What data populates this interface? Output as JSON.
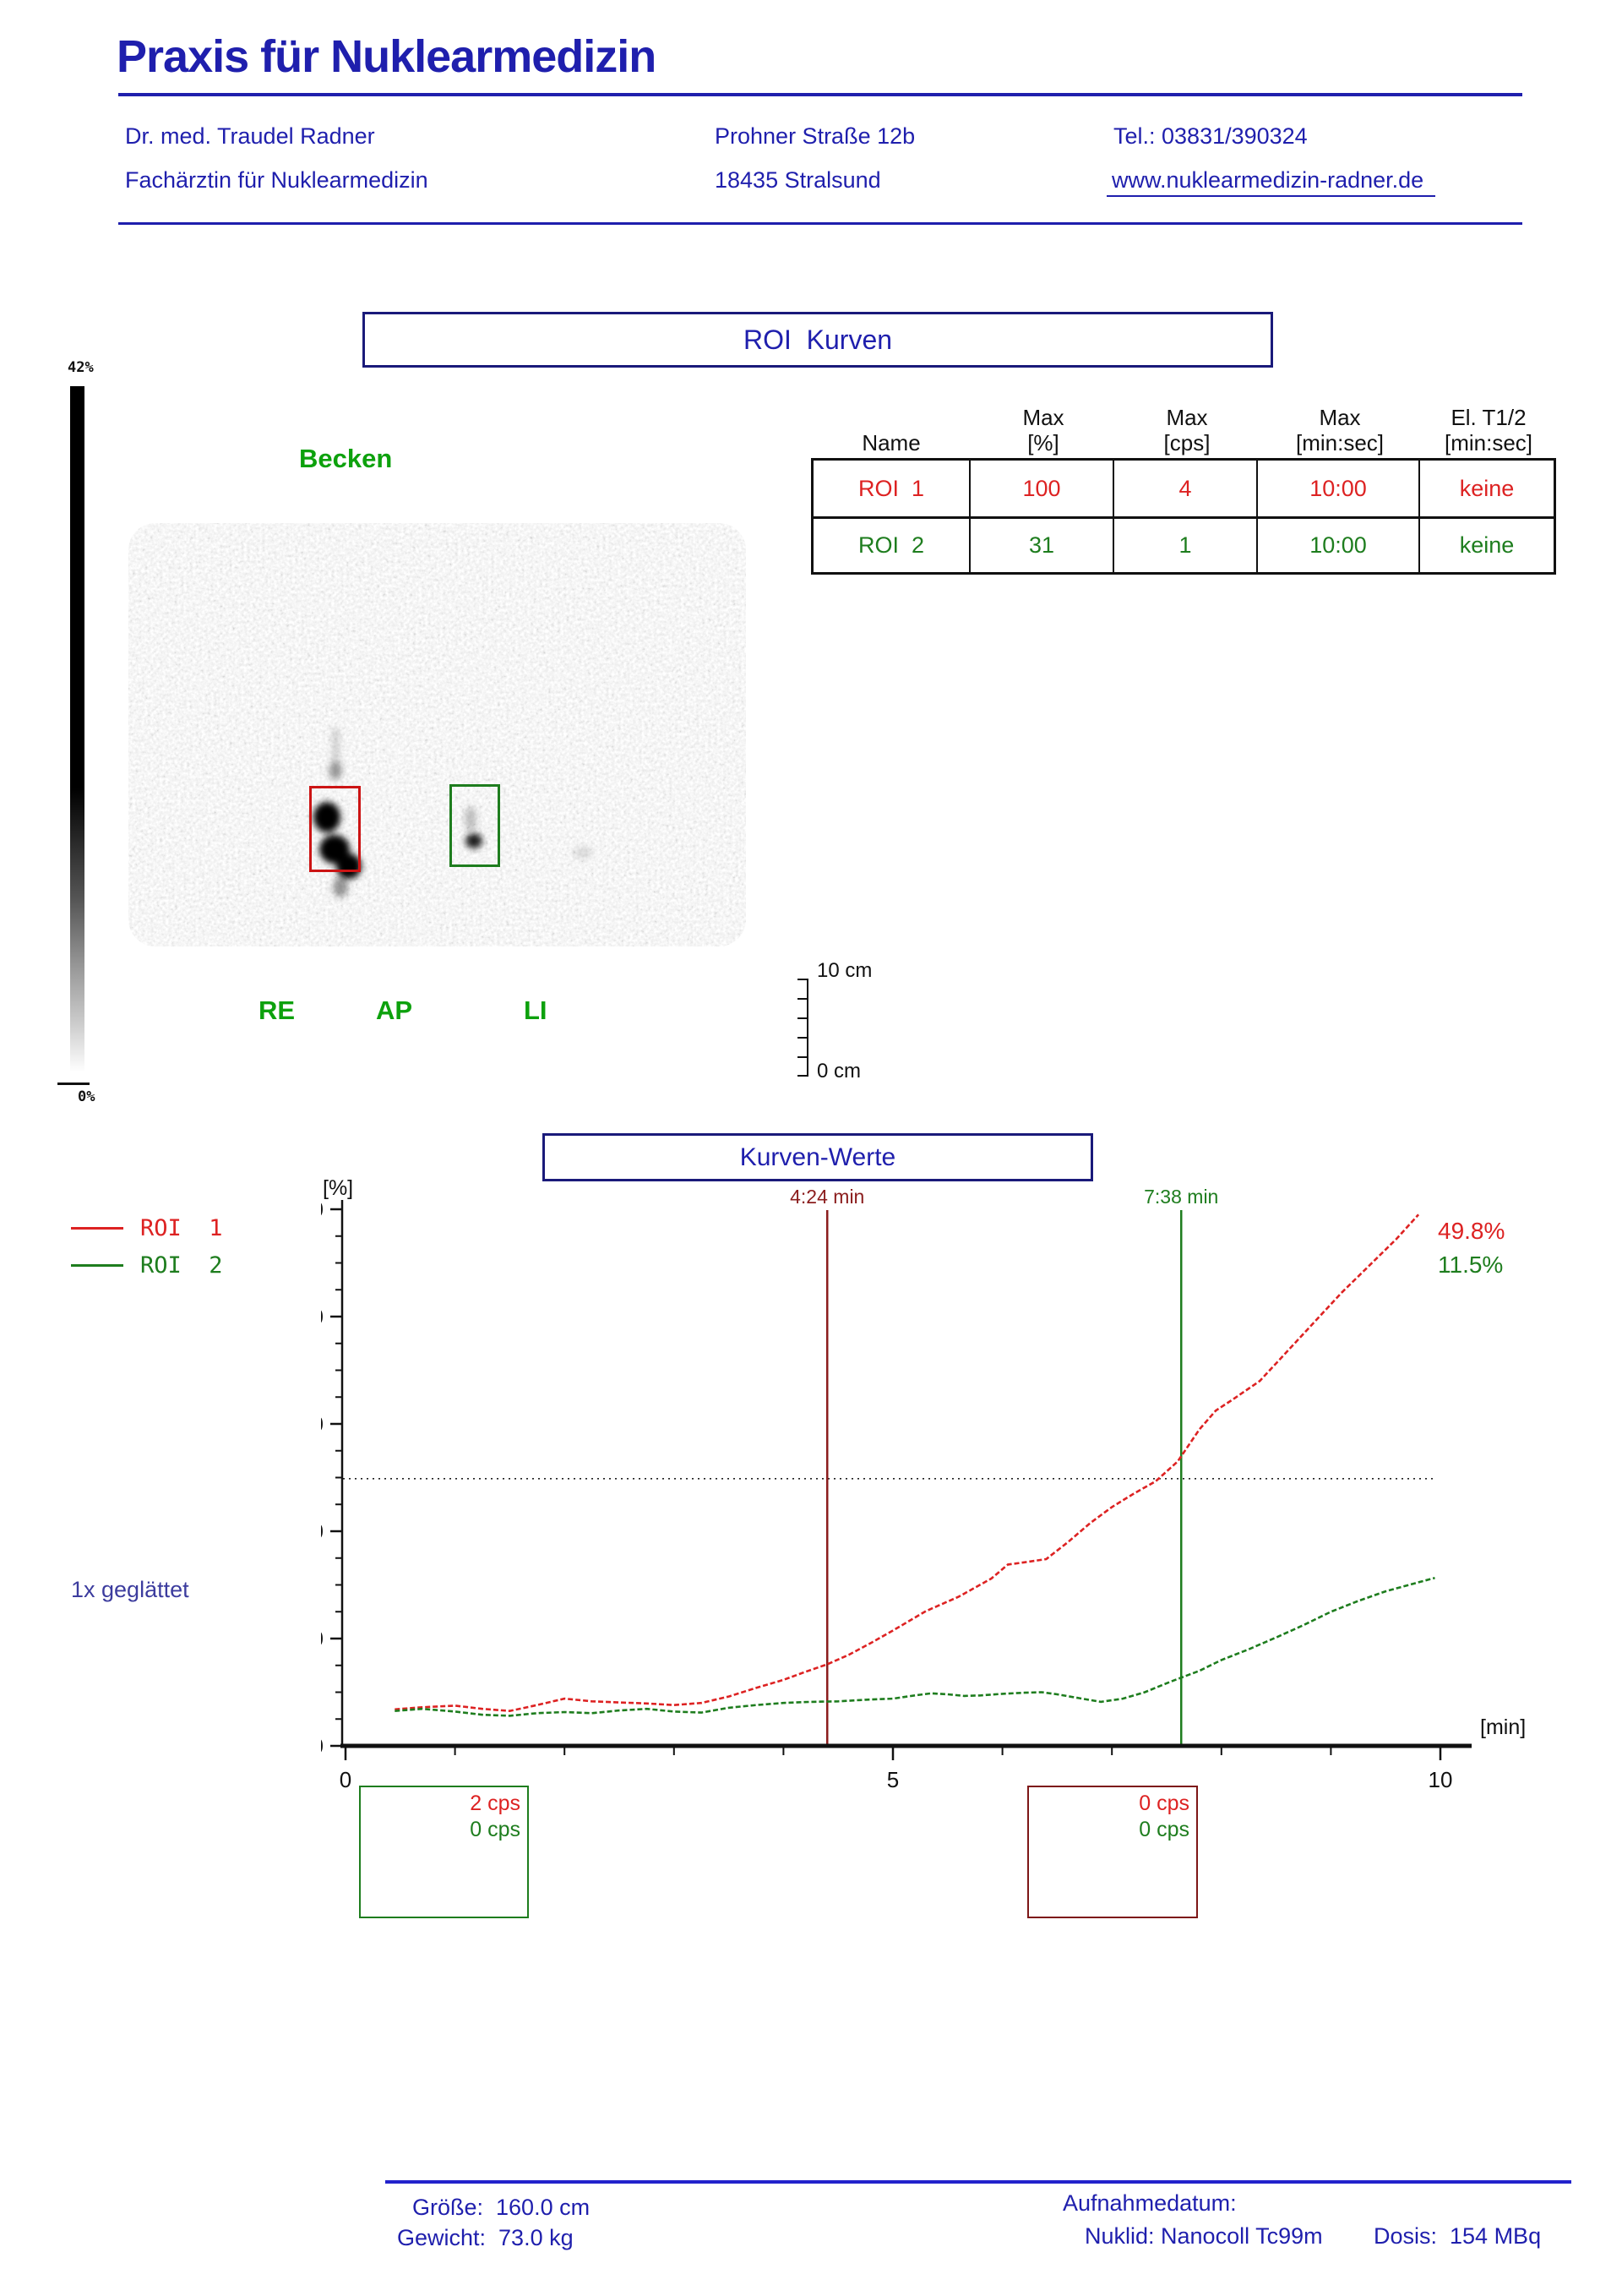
{
  "header": {
    "title": "Praxis für Nuklearmedizin",
    "doctor_name": "Dr. med. Traudel Radner",
    "doctor_title": "Fachärztin für Nuklearmedizin",
    "street": "Prohner Straße 12b",
    "city": "18435 Stralsund",
    "phone": "Tel.: 03831/390324",
    "website": "www.nuklearmedizin-radner.de"
  },
  "roi_section": {
    "box_title": "ROI  Kurven",
    "image_label": "Becken",
    "orientation": {
      "left": "RE",
      "center": "AP",
      "right": "LI"
    },
    "colorbar": {
      "top_label": "42%",
      "bottom_label": "0%"
    },
    "ruler": {
      "top_label": "10 cm",
      "bottom_label": "0 cm"
    },
    "table": {
      "headers": [
        {
          "line1": "",
          "line2": "Name"
        },
        {
          "line1": "Max",
          "line2": "[%]"
        },
        {
          "line1": "Max",
          "line2": "[cps]"
        },
        {
          "line1": "Max",
          "line2": "[min:sec]"
        },
        {
          "line1": "El. T1/2",
          "line2": "[min:sec]"
        }
      ],
      "rows": [
        {
          "name": "ROI  1",
          "max_pct": "100",
          "max_cps": "4",
          "max_time": "10:00",
          "el_t12": "keine",
          "color": "#dd2222"
        },
        {
          "name": "ROI  2",
          "max_pct": "31",
          "max_cps": "1",
          "max_time": "10:00",
          "el_t12": "keine",
          "color": "#1e7d1e"
        }
      ]
    }
  },
  "chart_section": {
    "box_title": "Kurven-Werte",
    "smoothing_note": "1x geglättet",
    "legend": [
      {
        "label": "ROI  1",
        "color": "#dd2222"
      },
      {
        "label": "ROI  2",
        "color": "#1e7d1e"
      }
    ]
  },
  "chart_data": {
    "type": "line",
    "title": "Kurven-Werte",
    "xlabel": "[min]",
    "ylabel": "[%]",
    "xlim": [
      0,
      10
    ],
    "ylim": [
      0,
      100
    ],
    "xticks": [
      0,
      5,
      10
    ],
    "xminor_step": 1,
    "yticks": [
      0,
      20,
      40,
      60,
      80,
      100
    ],
    "yminor_step": 5,
    "grid": false,
    "legend_position": "top-left-outside",
    "reference_line_pct": 49.8,
    "markers": [
      {
        "label": "4:24 min",
        "min": 4.4,
        "color": "#8b1d1d"
      },
      {
        "label": "7:38 min",
        "min": 7.633,
        "color": "#1e7d1e"
      }
    ],
    "end_labels": [
      {
        "text": "49.8%",
        "color": "#dd2222"
      },
      {
        "text": "11.5%",
        "color": "#1e7d1e"
      }
    ],
    "series": [
      {
        "name": "ROI 1",
        "color": "#dd2222",
        "points": [
          [
            0.45,
            6.8
          ],
          [
            0.7,
            7.2
          ],
          [
            1.0,
            7.5
          ],
          [
            1.25,
            6.9
          ],
          [
            1.5,
            6.5
          ],
          [
            1.75,
            7.6
          ],
          [
            2.0,
            8.8
          ],
          [
            2.25,
            8.3
          ],
          [
            2.5,
            8.1
          ],
          [
            2.75,
            7.9
          ],
          [
            3.0,
            7.6
          ],
          [
            3.25,
            8.0
          ],
          [
            3.5,
            9.2
          ],
          [
            3.75,
            10.8
          ],
          [
            4.0,
            12.3
          ],
          [
            4.2,
            13.8
          ],
          [
            4.4,
            15.2
          ],
          [
            4.6,
            17.0
          ],
          [
            4.8,
            19.2
          ],
          [
            5.0,
            21.5
          ],
          [
            5.3,
            25.1
          ],
          [
            5.6,
            27.8
          ],
          [
            5.9,
            31.2
          ],
          [
            6.05,
            33.8
          ],
          [
            6.2,
            34.2
          ],
          [
            6.4,
            34.8
          ],
          [
            6.6,
            38.0
          ],
          [
            6.8,
            41.5
          ],
          [
            7.0,
            44.5
          ],
          [
            7.2,
            47.0
          ],
          [
            7.4,
            49.3
          ],
          [
            7.6,
            53.0
          ],
          [
            7.8,
            59.0
          ],
          [
            7.95,
            62.5
          ],
          [
            8.1,
            64.5
          ],
          [
            8.35,
            68.0
          ],
          [
            8.6,
            73.5
          ],
          [
            8.85,
            79.0
          ],
          [
            9.1,
            84.5
          ],
          [
            9.35,
            89.5
          ],
          [
            9.6,
            94.5
          ],
          [
            9.8,
            99.0
          ]
        ]
      },
      {
        "name": "ROI 2",
        "color": "#1e7d1e",
        "points": [
          [
            0.45,
            6.5
          ],
          [
            0.7,
            6.9
          ],
          [
            1.0,
            6.4
          ],
          [
            1.25,
            5.8
          ],
          [
            1.5,
            5.6
          ],
          [
            1.75,
            6.1
          ],
          [
            2.0,
            6.3
          ],
          [
            2.25,
            6.1
          ],
          [
            2.5,
            6.6
          ],
          [
            2.75,
            6.9
          ],
          [
            3.0,
            6.4
          ],
          [
            3.25,
            6.2
          ],
          [
            3.5,
            7.1
          ],
          [
            3.75,
            7.6
          ],
          [
            4.0,
            8.0
          ],
          [
            4.25,
            8.2
          ],
          [
            4.5,
            8.3
          ],
          [
            4.75,
            8.6
          ],
          [
            5.0,
            8.8
          ],
          [
            5.2,
            9.4
          ],
          [
            5.35,
            9.8
          ],
          [
            5.5,
            9.6
          ],
          [
            5.65,
            9.3
          ],
          [
            5.8,
            9.4
          ],
          [
            6.0,
            9.7
          ],
          [
            6.2,
            9.9
          ],
          [
            6.36,
            10.0
          ],
          [
            6.5,
            9.6
          ],
          [
            6.7,
            8.9
          ],
          [
            6.9,
            8.2
          ],
          [
            7.1,
            8.8
          ],
          [
            7.3,
            10.0
          ],
          [
            7.54,
            12.0
          ],
          [
            7.8,
            14.0
          ],
          [
            8.0,
            16.0
          ],
          [
            8.25,
            18.0
          ],
          [
            8.5,
            20.2
          ],
          [
            8.75,
            22.5
          ],
          [
            9.0,
            25.0
          ],
          [
            9.25,
            27.0
          ],
          [
            9.5,
            28.8
          ],
          [
            9.75,
            30.2
          ],
          [
            9.95,
            31.3
          ]
        ]
      }
    ],
    "event_boxes": [
      {
        "t0": 0.12,
        "t1": 1.67,
        "border": "#1e7d1e",
        "labels": [
          {
            "text": "2 cps",
            "color": "#dd2222"
          },
          {
            "text": "0 cps",
            "color": "#1e7d1e"
          }
        ]
      },
      {
        "t0": 6.23,
        "t1": 7.79,
        "border": "#7d1717",
        "labels": [
          {
            "text": "0 cps",
            "color": "#dd2222"
          },
          {
            "text": "0 cps",
            "color": "#1e7d1e"
          }
        ]
      }
    ]
  },
  "footer": {
    "height_line": "Größe:  160.0 cm",
    "weight_line": "Gewicht:  73.0 kg",
    "date_label": "Aufnahmedatum:",
    "nuclide_line": "Nuklid: Nanocoll Tc99m",
    "dose_line": "Dosis:  154 MBq"
  }
}
